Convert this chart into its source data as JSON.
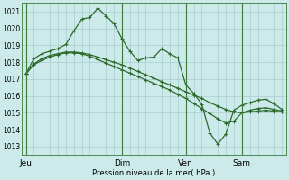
{
  "background_color": "#cceaea",
  "grid_color": "#aacccc",
  "line_color": "#2d6a2d",
  "marker": "+",
  "markersize": 3.5,
  "markeredgewidth": 0.8,
  "linewidth": 0.9,
  "ylabel": "Pression niveau de la mer( hPa )",
  "ylim": [
    1012.5,
    1021.5
  ],
  "yticks": [
    1013,
    1014,
    1015,
    1016,
    1017,
    1018,
    1019,
    1020,
    1021
  ],
  "xtick_labels": [
    "Jeu",
    "Dim",
    "Ven",
    "Sam"
  ],
  "xtick_positions": [
    0,
    12,
    20,
    27
  ],
  "total_points": 33,
  "series1": [
    1017.3,
    1018.2,
    1018.5,
    1018.65,
    1018.8,
    1019.05,
    1019.85,
    1020.55,
    1020.65,
    1021.2,
    1020.75,
    1020.3,
    1019.4,
    1018.65,
    1018.1,
    1018.25,
    1018.3,
    1018.8,
    1018.5,
    1018.25,
    1016.65,
    1016.15,
    1015.5,
    1013.8,
    1013.15,
    1013.75,
    1015.15,
    1015.45,
    1015.6,
    1015.75,
    1015.8,
    1015.55,
    1015.2
  ],
  "series2": [
    1017.3,
    1017.9,
    1018.2,
    1018.4,
    1018.5,
    1018.6,
    1018.6,
    1018.55,
    1018.45,
    1018.3,
    1018.15,
    1018.0,
    1017.85,
    1017.65,
    1017.45,
    1017.25,
    1017.05,
    1016.85,
    1016.65,
    1016.45,
    1016.25,
    1016.05,
    1015.85,
    1015.6,
    1015.4,
    1015.2,
    1015.05,
    1015.0,
    1015.05,
    1015.1,
    1015.15,
    1015.1,
    1015.05
  ],
  "series3": [
    1017.3,
    1017.85,
    1018.1,
    1018.3,
    1018.45,
    1018.55,
    1018.55,
    1018.5,
    1018.35,
    1018.15,
    1017.95,
    1017.75,
    1017.55,
    1017.35,
    1017.15,
    1016.95,
    1016.75,
    1016.55,
    1016.35,
    1016.1,
    1015.85,
    1015.55,
    1015.25,
    1014.95,
    1014.65,
    1014.4,
    1014.5,
    1015.0,
    1015.15,
    1015.25,
    1015.3,
    1015.2,
    1015.1
  ],
  "vline_positions": [
    0,
    12,
    20,
    27
  ],
  "minor_xtick_interval": 1
}
